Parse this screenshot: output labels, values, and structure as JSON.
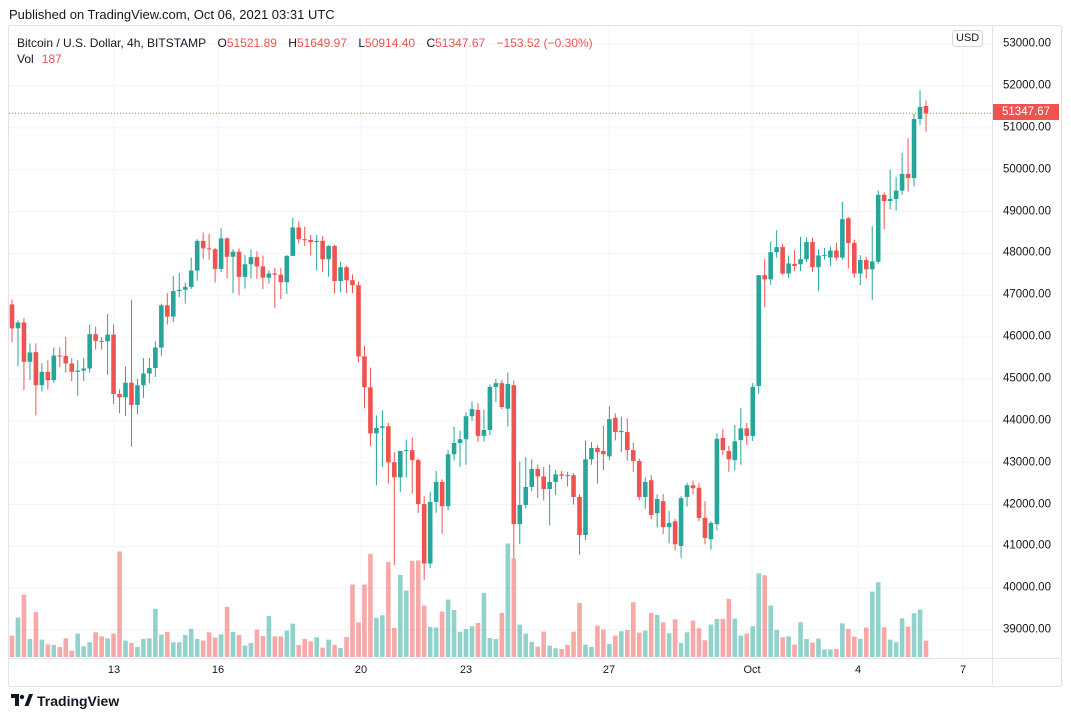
{
  "header": {
    "published": "Published on TradingView.com, Oct 06, 2021 03:31 UTC"
  },
  "legend": {
    "symbol": "Bitcoin / U.S. Dollar, 4h, BITSTAMP",
    "o_label": "O",
    "o": "51521.89",
    "h_label": "H",
    "h": "51649.97",
    "l_label": "L",
    "l": "50914.40",
    "c_label": "C",
    "c": "51347.67",
    "change": "−153.52 (−0.30%)",
    "vol_label": "Vol",
    "vol": "187"
  },
  "price_axis": {
    "currency": "USD",
    "last_price": "51347.67"
  },
  "footer": {
    "brand": "TradingView"
  },
  "colors": {
    "up": "#26a69a",
    "down": "#ef5350",
    "grid": "#f0f3fa"
  },
  "chart_data": {
    "type": "candlestick",
    "interval": "4h",
    "grid": true,
    "ylim": [
      38400,
      53200
    ],
    "y_ticks": [
      "53000.00",
      "52000.00",
      "51000.00",
      "50000.00",
      "49000.00",
      "48000.00",
      "47000.00",
      "46000.00",
      "45000.00",
      "44000.00",
      "43000.00",
      "42000.00",
      "41000.00",
      "40000.00",
      "39000.00"
    ],
    "x_ticks": [
      "13",
      "16",
      "20",
      "23",
      "27",
      "Oct",
      "4",
      "7"
    ],
    "ohlc": [
      [
        46780,
        46900,
        45880,
        46210
      ],
      [
        46210,
        46400,
        45300,
        46350
      ],
      [
        46350,
        46450,
        44735,
        45410
      ],
      [
        45410,
        45850,
        44970,
        45635
      ],
      [
        45640,
        45850,
        44130,
        44850
      ],
      [
        44850,
        45380,
        44700,
        45170
      ],
      [
        45170,
        45450,
        44750,
        44970
      ],
      [
        44970,
        45750,
        44900,
        45560
      ],
      [
        45560,
        45760,
        45280,
        45550
      ],
      [
        45550,
        46000,
        45150,
        45370
      ],
      [
        45370,
        45500,
        44950,
        45170
      ],
      [
        45170,
        45450,
        44600,
        45200
      ],
      [
        45200,
        45500,
        44950,
        45250
      ],
      [
        45250,
        46300,
        45150,
        46070
      ],
      [
        46070,
        46250,
        45700,
        45910
      ],
      [
        45910,
        46000,
        45700,
        45900
      ],
      [
        45900,
        46550,
        45100,
        46060
      ],
      [
        46060,
        46300,
        44400,
        44640
      ],
      [
        44640,
        44750,
        44180,
        44560
      ],
      [
        44560,
        45300,
        44120,
        44910
      ],
      [
        44910,
        46890,
        43380,
        44380
      ],
      [
        44380,
        45000,
        44150,
        44850
      ],
      [
        44850,
        45500,
        44550,
        45130
      ],
      [
        45130,
        45500,
        44900,
        45260
      ],
      [
        45260,
        45900,
        45050,
        45750
      ],
      [
        45750,
        46800,
        45550,
        46760
      ],
      [
        46760,
        47050,
        46300,
        46490
      ],
      [
        46490,
        47460,
        46360,
        47100
      ],
      [
        47100,
        47530,
        46950,
        47130
      ],
      [
        47130,
        47300,
        46800,
        47200
      ],
      [
        47200,
        47900,
        47150,
        47590
      ],
      [
        47590,
        48340,
        47350,
        48300
      ],
      [
        48300,
        48500,
        47870,
        48120
      ],
      [
        48120,
        48470,
        47850,
        48100
      ],
      [
        48100,
        48130,
        47300,
        47630
      ],
      [
        47630,
        48600,
        47550,
        48360
      ],
      [
        48360,
        48380,
        47400,
        47920
      ],
      [
        47920,
        48100,
        47050,
        48040
      ],
      [
        48040,
        48120,
        47000,
        47440
      ],
      [
        47440,
        47960,
        47160,
        47740
      ],
      [
        47740,
        48090,
        47400,
        47910
      ],
      [
        47910,
        48050,
        47390,
        47690
      ],
      [
        47690,
        47950,
        47150,
        47420
      ],
      [
        47420,
        47600,
        47280,
        47520
      ],
      [
        47520,
        47650,
        46700,
        47490
      ],
      [
        47490,
        47650,
        46910,
        47310
      ],
      [
        47310,
        47960,
        47030,
        47940
      ],
      [
        47940,
        48850,
        47940,
        48620
      ],
      [
        48620,
        48760,
        48240,
        48340
      ],
      [
        48340,
        48640,
        48180,
        48320
      ],
      [
        48320,
        48440,
        47950,
        48270
      ],
      [
        48270,
        48440,
        47600,
        48300
      ],
      [
        48300,
        48420,
        47550,
        47860
      ],
      [
        47860,
        48190,
        47440,
        48180
      ],
      [
        48180,
        48200,
        47040,
        47340
      ],
      [
        47340,
        47800,
        47070,
        47670
      ],
      [
        47670,
        47700,
        47050,
        47360
      ],
      [
        47360,
        47500,
        47050,
        47240
      ],
      [
        47240,
        47330,
        45400,
        45540
      ],
      [
        45540,
        45800,
        44300,
        44800
      ],
      [
        44800,
        45270,
        43400,
        43700
      ],
      [
        43700,
        44130,
        42460,
        43830
      ],
      [
        43830,
        44250,
        42900,
        43870
      ],
      [
        43870,
        43950,
        42500,
        43010
      ],
      [
        43010,
        43250,
        40550,
        42650
      ],
      [
        42650,
        43250,
        42300,
        43280
      ],
      [
        43280,
        43550,
        42650,
        43300
      ],
      [
        43300,
        43600,
        42260,
        43060
      ],
      [
        43060,
        43100,
        41800,
        42010
      ],
      [
        42010,
        42200,
        40200,
        40590
      ],
      [
        40590,
        42300,
        40480,
        42060
      ],
      [
        42060,
        42800,
        41800,
        42540
      ],
      [
        42540,
        42600,
        41300,
        41960
      ],
      [
        41960,
        43310,
        41860,
        43200
      ],
      [
        43200,
        43860,
        43050,
        43470
      ],
      [
        43470,
        43760,
        42900,
        43560
      ],
      [
        43560,
        44200,
        42950,
        44110
      ],
      [
        44110,
        44460,
        44000,
        44280
      ],
      [
        44260,
        44420,
        43500,
        43640
      ],
      [
        43640,
        44270,
        43500,
        43780
      ],
      [
        43780,
        44870,
        43660,
        44810
      ],
      [
        44810,
        45000,
        44450,
        44900
      ],
      [
        44900,
        44980,
        44280,
        44330
      ],
      [
        44290,
        45150,
        43860,
        44880
      ],
      [
        44850,
        44960,
        40700,
        41530
      ],
      [
        41530,
        43030,
        41050,
        41990
      ],
      [
        41990,
        43130,
        41900,
        42420
      ],
      [
        42420,
        43080,
        42320,
        42850
      ],
      [
        42850,
        42950,
        42150,
        42670
      ],
      [
        42670,
        42900,
        42100,
        42370
      ],
      [
        42370,
        42950,
        41500,
        42540
      ],
      [
        42540,
        42830,
        42230,
        42720
      ],
      [
        42720,
        42800,
        42600,
        42690
      ],
      [
        42700,
        42780,
        42430,
        42680
      ],
      [
        42700,
        42750,
        42000,
        42180
      ],
      [
        42180,
        42250,
        40800,
        41270
      ],
      [
        41270,
        43530,
        41150,
        43080
      ],
      [
        43080,
        43490,
        42950,
        43350
      ],
      [
        43350,
        43420,
        42500,
        43250
      ],
      [
        43280,
        43880,
        42820,
        43200
      ],
      [
        43150,
        44350,
        43060,
        44040
      ],
      [
        44070,
        44180,
        43530,
        43730
      ],
      [
        43730,
        44100,
        43250,
        43760
      ],
      [
        43730,
        44060,
        43050,
        43300
      ],
      [
        43300,
        43480,
        42780,
        43040
      ],
      [
        43040,
        43100,
        42100,
        42180
      ],
      [
        42180,
        42650,
        41900,
        42540
      ],
      [
        42580,
        42700,
        41650,
        41750
      ],
      [
        41790,
        42240,
        41450,
        42130
      ],
      [
        42080,
        42250,
        41300,
        41460
      ],
      [
        41460,
        41850,
        41070,
        41560
      ],
      [
        41600,
        41650,
        40900,
        41050
      ],
      [
        41010,
        42200,
        40720,
        42150
      ],
      [
        42180,
        42520,
        41950,
        42460
      ],
      [
        42460,
        42570,
        42250,
        42390
      ],
      [
        42400,
        42520,
        41600,
        41680
      ],
      [
        41680,
        42080,
        41050,
        41200
      ],
      [
        41170,
        41600,
        40920,
        41560
      ],
      [
        41530,
        43700,
        41380,
        43570
      ],
      [
        43590,
        43800,
        43180,
        43300
      ],
      [
        43280,
        43400,
        42780,
        43080
      ],
      [
        43060,
        43900,
        42820,
        43510
      ],
      [
        43540,
        44300,
        42950,
        43820
      ],
      [
        43820,
        43950,
        43420,
        43640
      ],
      [
        43640,
        44900,
        43520,
        44810
      ],
      [
        44830,
        47480,
        44650,
        47480
      ],
      [
        47480,
        47860,
        46720,
        47380
      ],
      [
        47380,
        48280,
        47250,
        48030
      ],
      [
        48030,
        48550,
        47900,
        48150
      ],
      [
        48150,
        48230,
        47480,
        47520
      ],
      [
        47520,
        47950,
        47420,
        47760
      ],
      [
        47750,
        48080,
        47580,
        47700
      ],
      [
        47740,
        48400,
        47580,
        47860
      ],
      [
        47860,
        48380,
        47800,
        48270
      ],
      [
        48270,
        48380,
        47560,
        47670
      ],
      [
        47670,
        48100,
        47100,
        47950
      ],
      [
        47950,
        48130,
        47850,
        47960
      ],
      [
        47900,
        48160,
        47700,
        48070
      ],
      [
        48070,
        48260,
        47830,
        47900
      ],
      [
        47900,
        49230,
        47850,
        48820
      ],
      [
        48840,
        48870,
        47640,
        48250
      ],
      [
        48250,
        48330,
        47420,
        47520
      ],
      [
        47520,
        47960,
        47240,
        47840
      ],
      [
        47840,
        47920,
        47400,
        47620
      ],
      [
        47620,
        48650,
        46890,
        47810
      ],
      [
        47800,
        49510,
        47750,
        49400
      ],
      [
        49400,
        49460,
        48580,
        49250
      ],
      [
        49250,
        50000,
        49050,
        49300
      ],
      [
        49300,
        49830,
        49020,
        49500
      ],
      [
        49500,
        50400,
        49400,
        49900
      ],
      [
        49900,
        50750,
        49480,
        49800
      ],
      [
        49800,
        51330,
        49600,
        51210
      ],
      [
        51210,
        51900,
        51070,
        51500
      ],
      [
        51521.89,
        51649.97,
        50914.4,
        51347.67
      ]
    ],
    "volume": [
      245,
      452,
      716,
      207,
      517,
      199,
      146,
      138,
      115,
      214,
      73,
      268,
      123,
      169,
      283,
      237,
      214,
      268,
      1210,
      188,
      161,
      115,
      207,
      214,
      552,
      257,
      287,
      169,
      169,
      253,
      322,
      207,
      188,
      283,
      222,
      260,
      575,
      287,
      253,
      130,
      161,
      314,
      241,
      471,
      237,
      237,
      303,
      383,
      138,
      207,
      180,
      226,
      107,
      199,
      138,
      103,
      230,
      831,
      398,
      831,
      1183,
      448,
      479,
      1088,
      333,
      942,
      762,
      1103,
      1107,
      590,
      345,
      337,
      521,
      659,
      540,
      291,
      322,
      352,
      391,
      735,
      218,
      207,
      506,
      1302,
      1130,
      372,
      268,
      172,
      119,
      291,
      130,
      100,
      92,
      138,
      291,
      620,
      142,
      115,
      360,
      314,
      149,
      245,
      295,
      310,
      628,
      280,
      303,
      506,
      483,
      398,
      272,
      433,
      161,
      283,
      417,
      329,
      192,
      372,
      437,
      437,
      666,
      440,
      245,
      268,
      352,
      958,
      938,
      590,
      310,
      226,
      237,
      142,
      398,
      207,
      165,
      211,
      88,
      88,
      92,
      387,
      322,
      234,
      207,
      337,
      751,
      858,
      341,
      199,
      169,
      444,
      349,
      502,
      544,
      187
    ]
  }
}
